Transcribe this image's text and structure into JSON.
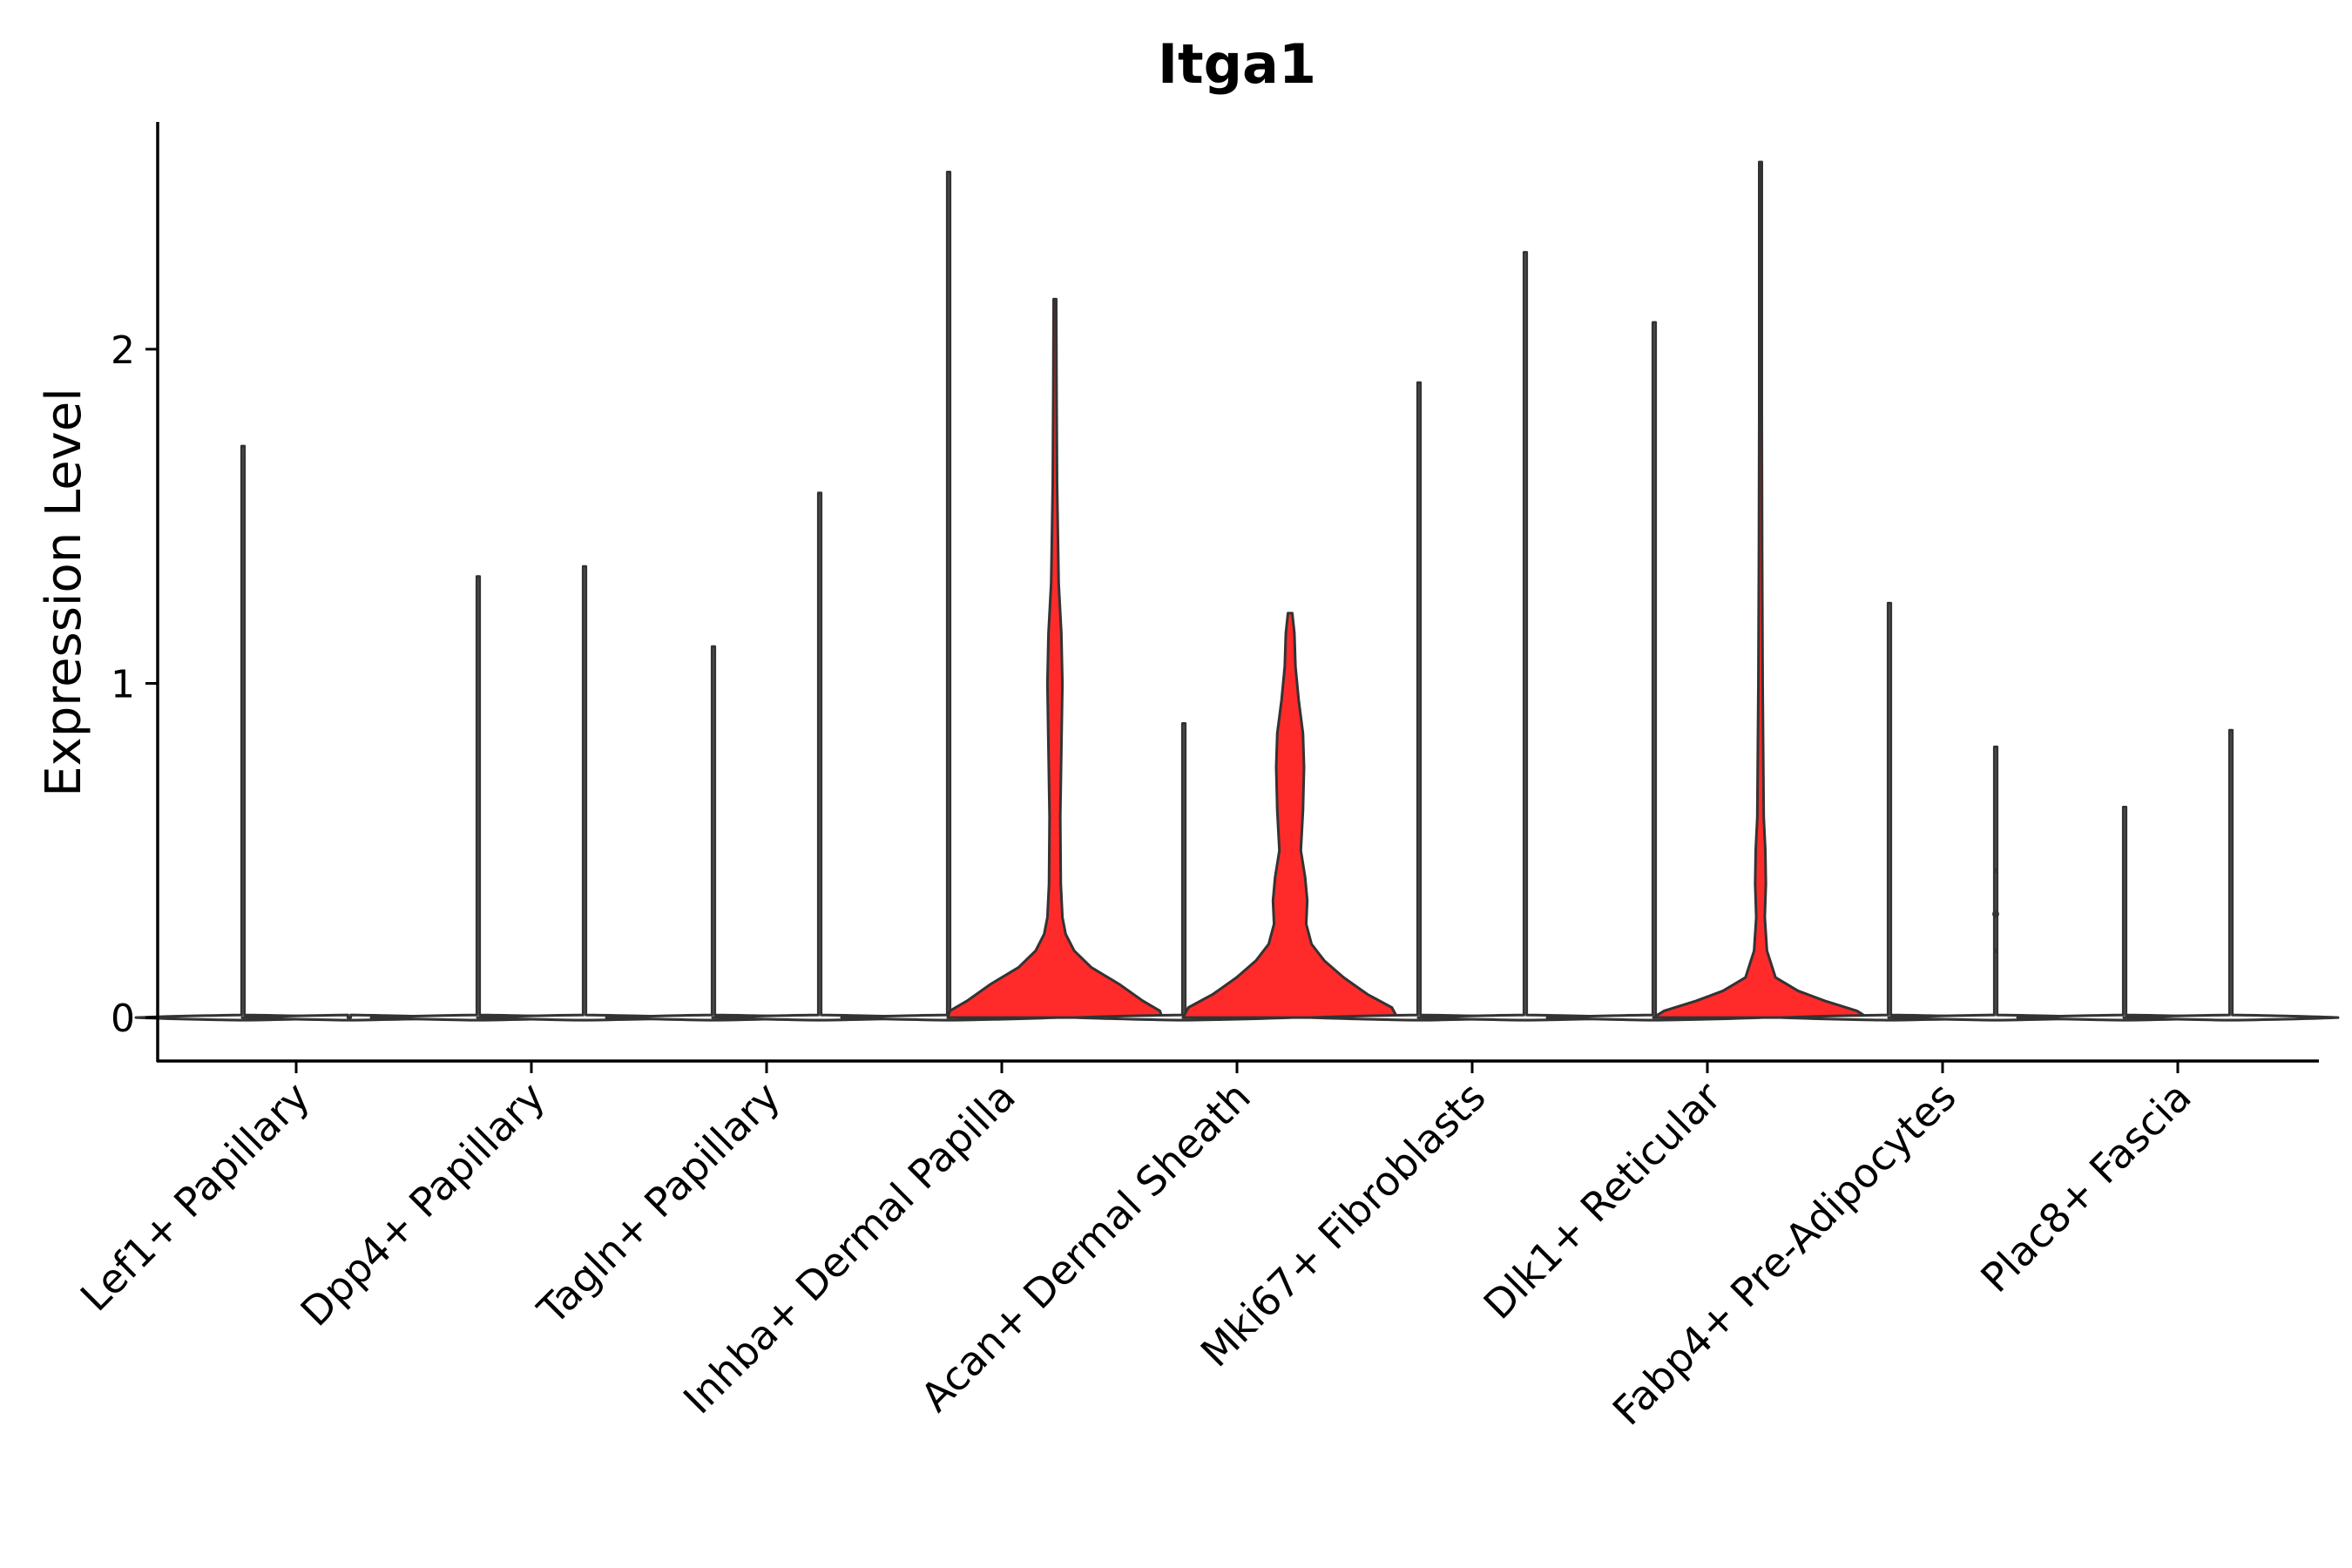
{
  "chart_data": {
    "type": "violin",
    "title": "Itga1",
    "xlabel": "",
    "ylabel": "Expression Level",
    "ylim": [
      -0.13,
      2.68
    ],
    "y_ticks": [
      0,
      1,
      2
    ],
    "legend": "none",
    "grid": false,
    "colors": {
      "dominant": "#ff2a2a",
      "other": "#f2f2f2",
      "outline": "#333333"
    },
    "categories": [
      "Lef1+ Papillary",
      "Dpp4+ Papillary",
      "Tagln+ Papillary",
      "Inhba+ Dermal Papilla",
      "Acan+ Dermal Sheath",
      "Mki67+ Fibroblasts",
      "Dlk1+ Reticular",
      "Fabp4+ Pre-Adipocytes",
      "Plac8+ Fascia"
    ],
    "series": [
      {
        "name": "other",
        "color": "#f2f2f2",
        "max": [
          1.71,
          1.32,
          1.11,
          2.53,
          0.88,
          1.9,
          2.08,
          1.24,
          0.63
        ]
      },
      {
        "name": "dominant",
        "color": "#ff2a2a",
        "max": [
          0.0,
          1.35,
          1.57,
          2.15,
          1.21,
          2.29,
          2.56,
          0.81,
          0.86
        ]
      }
    ]
  }
}
